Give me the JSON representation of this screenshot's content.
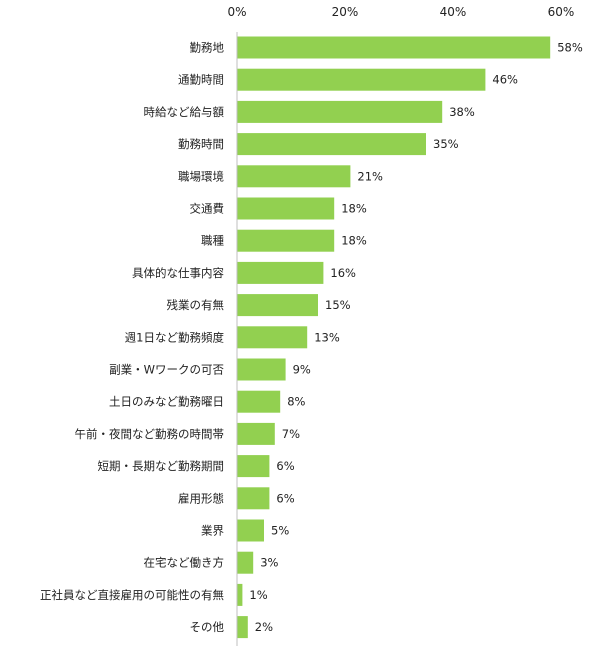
{
  "chart_data": {
    "type": "bar",
    "orientation": "horizontal",
    "title": "",
    "xlabel": "",
    "ylabel": "",
    "xlim": [
      0,
      60
    ],
    "x_ticks": [
      0,
      20,
      40,
      60
    ],
    "x_tick_labels": [
      "0%",
      "20%",
      "40%",
      "60%"
    ],
    "x_axis_position": "top",
    "grid": false,
    "legend": "none",
    "bar_color": "#92d050",
    "categories": [
      "勤務地",
      "通勤時間",
      "時給など給与額",
      "勤務時間",
      "職場環境",
      "交通費",
      "職種",
      "具体的な仕事内容",
      "残業の有無",
      "週1日など勤務頻度",
      "副業・Wワークの可否",
      "土日のみなど勤務曜日",
      "午前・夜間など勤務の時間帯",
      "短期・長期など勤務期間",
      "雇用形態",
      "業界",
      "在宅など働き方",
      "正社員など直接雇用の可能性の有無",
      "その他"
    ],
    "values": [
      58,
      46,
      38,
      35,
      21,
      18,
      18,
      16,
      15,
      13,
      9,
      8,
      7,
      6,
      6,
      5,
      3,
      1,
      2
    ],
    "data_labels": [
      "58%",
      "46%",
      "38%",
      "35%",
      "21%",
      "18%",
      "18%",
      "16%",
      "15%",
      "13%",
      "9%",
      "8%",
      "7%",
      "6%",
      "6%",
      "5%",
      "3%",
      "1%",
      "2%"
    ]
  }
}
